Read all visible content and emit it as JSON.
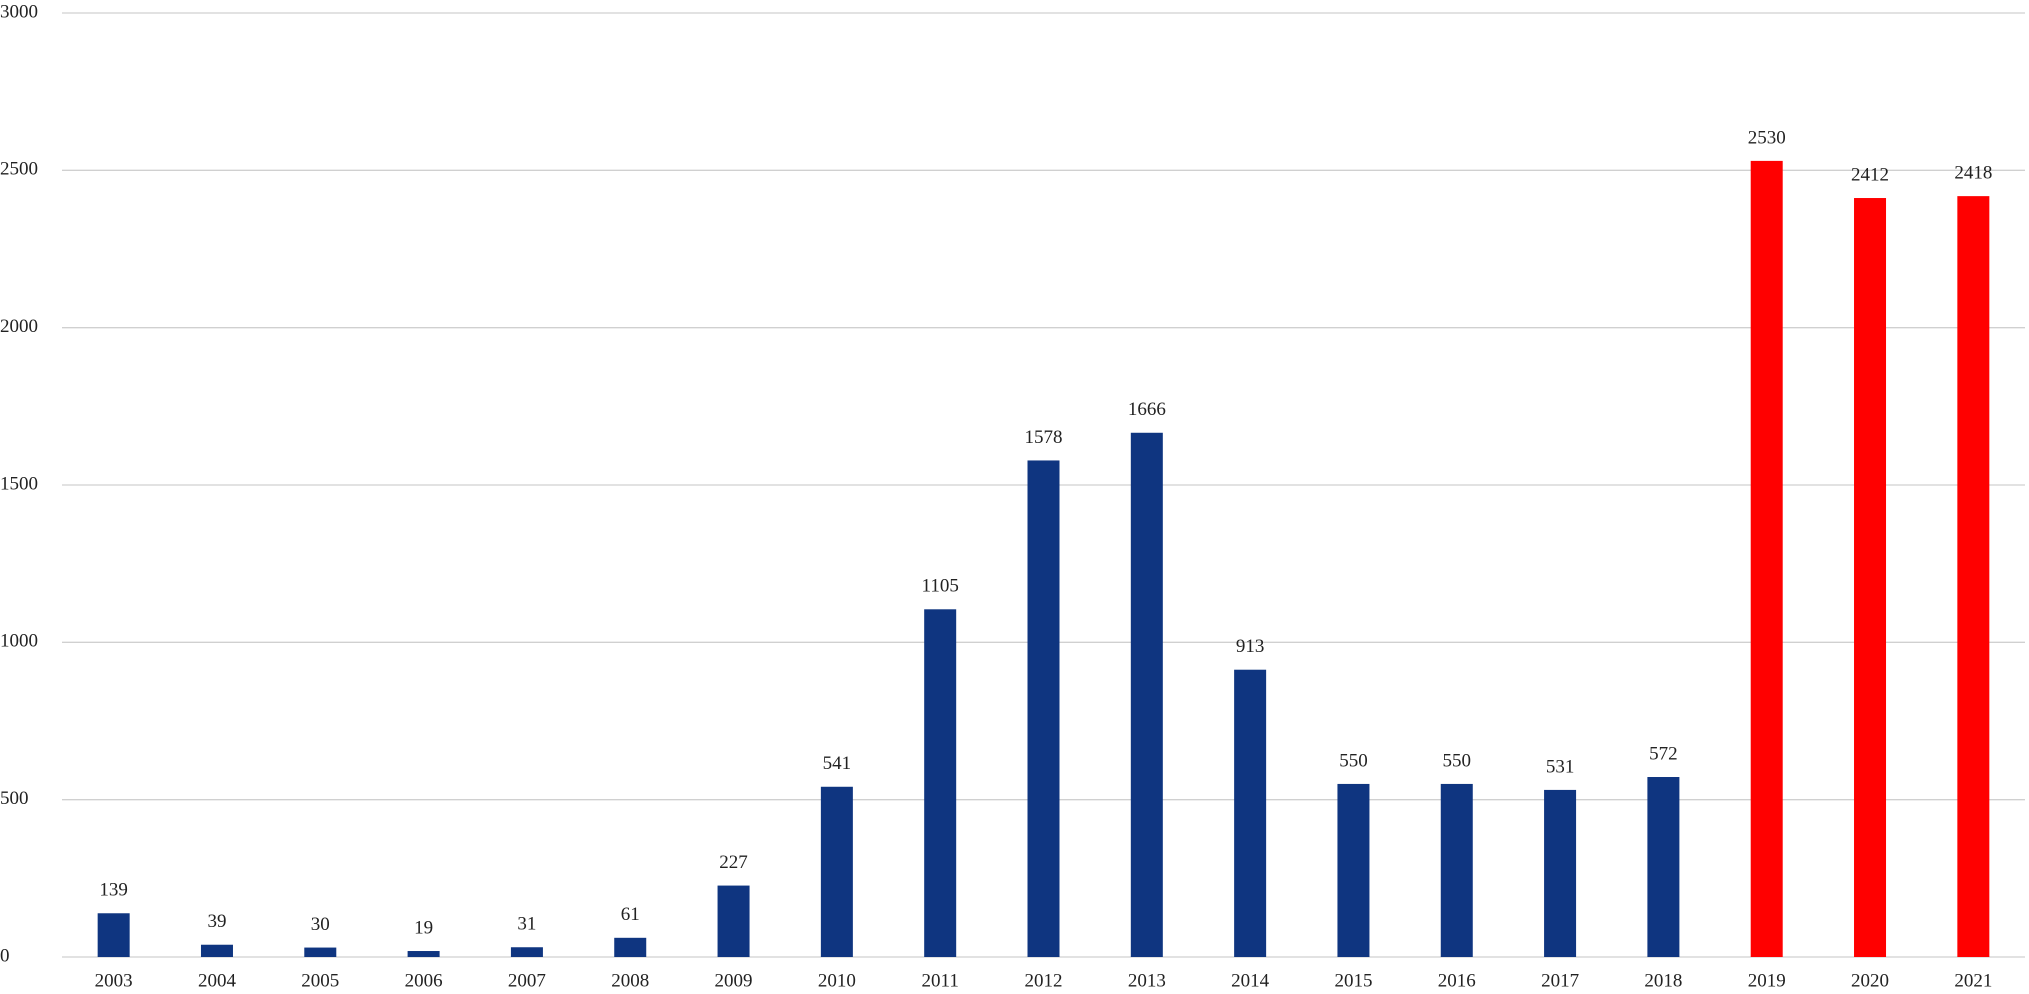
{
  "chart_data": {
    "type": "bar",
    "categories": [
      "2003",
      "2004",
      "2005",
      "2006",
      "2007",
      "2008",
      "2009",
      "2010",
      "2011",
      "2012",
      "2013",
      "2014",
      "2015",
      "2016",
      "2017",
      "2018",
      "2019",
      "2020",
      "2021"
    ],
    "values": [
      139,
      39,
      30,
      19,
      31,
      61,
      227,
      541,
      1105,
      1578,
      1666,
      913,
      550,
      550,
      531,
      572,
      2530,
      2412,
      2418
    ],
    "colors": [
      "#0f3580",
      "#0f3580",
      "#0f3580",
      "#0f3580",
      "#0f3580",
      "#0f3580",
      "#0f3580",
      "#0f3580",
      "#0f3580",
      "#0f3580",
      "#0f3580",
      "#0f3580",
      "#0f3580",
      "#0f3580",
      "#0f3580",
      "#0f3580",
      "#ff0000",
      "#ff0000",
      "#ff0000"
    ],
    "ylim": [
      0,
      3000
    ],
    "yticks": [
      0,
      500,
      1000,
      1500,
      2000,
      2500,
      3000
    ],
    "grid": true
  }
}
